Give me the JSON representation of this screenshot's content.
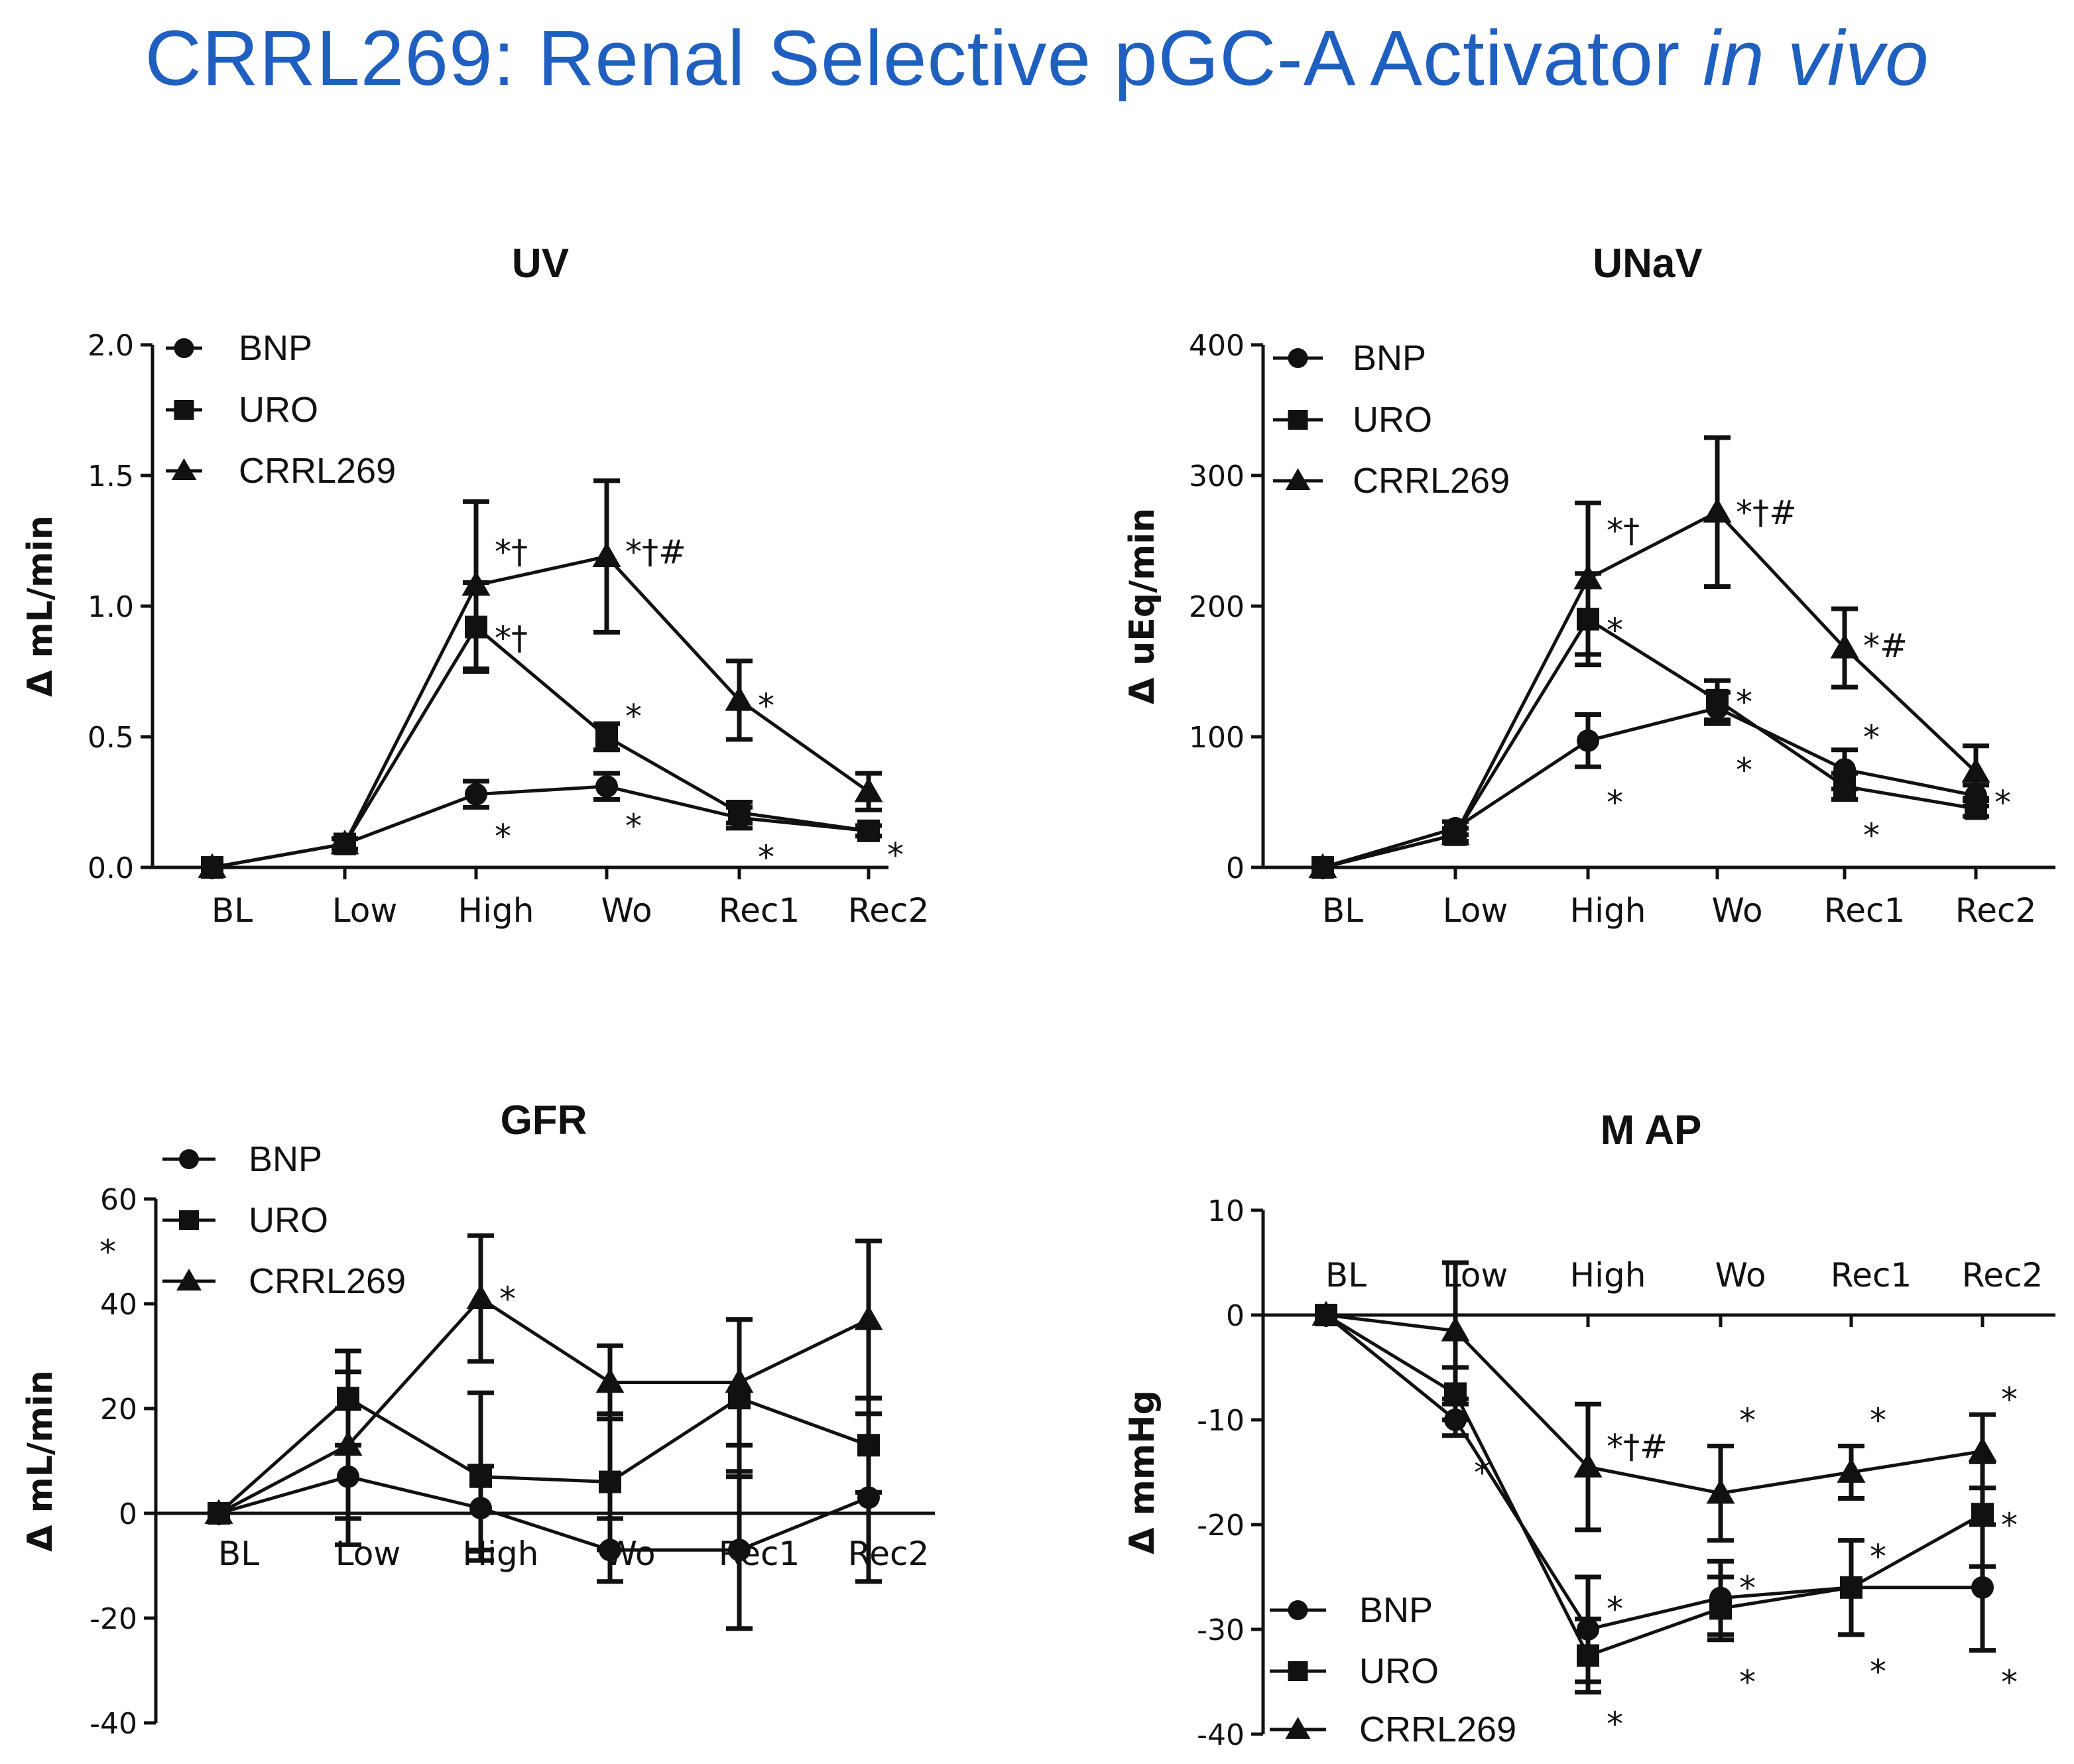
{
  "page_title": {
    "main": "CRRL269: Renal Selective pGC-A Activator ",
    "italic": "in vivo"
  },
  "chart_data": [
    {
      "id": "uv",
      "type": "line",
      "title": "UV",
      "ylabel": "Δ mL/min",
      "xlabel": "",
      "categories": [
        "BL",
        "Low",
        "High",
        "Wo",
        "Rec1",
        "Rec2"
      ],
      "ylim": [
        0,
        2.0
      ],
      "yticks": [
        0.0,
        0.5,
        1.0,
        1.5,
        2.0
      ],
      "ytick_labels": [
        "0.0",
        "0.5",
        "1.0",
        "1.5",
        "2.0"
      ],
      "grid": false,
      "legend_position": "top-left",
      "series": [
        {
          "name": "BNP",
          "marker": "circle",
          "values": [
            0.0,
            0.09,
            0.28,
            0.31,
            0.19,
            0.14
          ],
          "errors": [
            0,
            0.02,
            0.05,
            0.05,
            0.04,
            0.02
          ]
        },
        {
          "name": "URO",
          "marker": "square",
          "values": [
            0.0,
            0.09,
            0.92,
            0.5,
            0.21,
            0.14
          ],
          "errors": [
            0,
            0.02,
            0.17,
            0.05,
            0.04,
            0.02
          ]
        },
        {
          "name": "CRRL269",
          "marker": "triangle",
          "values": [
            0.0,
            0.09,
            1.08,
            1.19,
            0.64,
            0.29
          ],
          "errors": [
            0,
            0.02,
            0.32,
            0.29,
            0.15,
            0.07
          ]
        }
      ],
      "annotations": [
        {
          "text": "*†",
          "x": "High",
          "y": 1.21
        },
        {
          "text": "*†",
          "x": "High",
          "y": 0.88
        },
        {
          "text": "*",
          "x": "High",
          "y": 0.12
        },
        {
          "text": "*†#",
          "x": "Wo",
          "y": 1.21
        },
        {
          "text": "*",
          "x": "Wo",
          "y": 0.58
        },
        {
          "text": "*",
          "x": "Wo",
          "y": 0.16
        },
        {
          "text": "*",
          "x": "Rec1",
          "y": 0.62
        },
        {
          "text": "*",
          "x": "Rec1",
          "y": 0.04
        },
        {
          "text": "*",
          "x": "Rec2",
          "y": 0.05
        }
      ]
    },
    {
      "id": "unav",
      "type": "line",
      "title": "UNaV",
      "ylabel": "Δ uEq/min",
      "xlabel": "",
      "categories": [
        "BL",
        "Low",
        "High",
        "Wo",
        "Rec1",
        "Rec2"
      ],
      "ylim": [
        0,
        400
      ],
      "yticks": [
        0,
        100,
        200,
        300,
        400
      ],
      "ytick_labels": [
        "0",
        "100",
        "200",
        "300",
        "400"
      ],
      "grid": false,
      "legend_position": "top-left",
      "series": [
        {
          "name": "BNP",
          "marker": "circle",
          "values": [
            0,
            30,
            97,
            122,
            75,
            55
          ],
          "errors": [
            0,
            5,
            20,
            12,
            15,
            8
          ]
        },
        {
          "name": "URO",
          "marker": "square",
          "values": [
            0,
            25,
            190,
            128,
            62,
            45
          ],
          "errors": [
            0,
            5,
            35,
            15,
            10,
            6
          ]
        },
        {
          "name": "CRRL269",
          "marker": "triangle",
          "values": [
            0,
            25,
            221,
            272,
            168,
            73
          ],
          "errors": [
            0,
            5,
            58,
            57,
            30,
            20
          ]
        }
      ],
      "annotations": [
        {
          "text": "*†",
          "x": "High",
          "y": 258
        },
        {
          "text": "*",
          "x": "High",
          "y": 182
        },
        {
          "text": "*",
          "x": "High",
          "y": 50
        },
        {
          "text": "*†#",
          "x": "Wo",
          "y": 272
        },
        {
          "text": "*",
          "x": "Wo",
          "y": 127
        },
        {
          "text": "*",
          "x": "Wo",
          "y": 75
        },
        {
          "text": "*#",
          "x": "Rec1",
          "y": 170
        },
        {
          "text": "*",
          "x": "Rec1",
          "y": 100
        },
        {
          "text": "*",
          "x": "Rec1",
          "y": 25
        },
        {
          "text": "*",
          "x": "Rec2",
          "y": 50
        }
      ]
    },
    {
      "id": "gfr",
      "type": "line",
      "title": "GFR",
      "ylabel": "Δ mL/min",
      "xlabel": "",
      "categories": [
        "BL",
        "Low",
        "High",
        "Wo",
        "Rec1",
        "Rec2"
      ],
      "ylim": [
        -40,
        60
      ],
      "yticks": [
        -40,
        -20,
        0,
        20,
        40,
        60
      ],
      "ytick_labels": [
        "-40",
        "-20",
        "0",
        "20",
        "40",
        "60"
      ],
      "grid": false,
      "legend_position": "top-left",
      "series": [
        {
          "name": "BNP",
          "marker": "circle",
          "values": [
            0,
            7,
            1,
            -7,
            -7,
            3
          ],
          "errors": [
            0,
            13,
            8,
            6,
            15,
            16
          ]
        },
        {
          "name": "URO",
          "marker": "square",
          "values": [
            0,
            22,
            7,
            6,
            22,
            13
          ],
          "errors": [
            0,
            9,
            16,
            13,
            15,
            9
          ]
        },
        {
          "name": "CRRL269",
          "marker": "triangle",
          "values": [
            0,
            13,
            41,
            25,
            25,
            37
          ],
          "errors": [
            0,
            14,
            12,
            7,
            12,
            15
          ]
        }
      ],
      "annotations": [
        {
          "text": "*",
          "x": "High",
          "y": 41
        },
        {
          "text": "*",
          "x": "outside-left",
          "y": 50
        }
      ]
    },
    {
      "id": "map",
      "type": "line",
      "title": "M AP",
      "ylabel": "Δ mmHg",
      "xlabel": "",
      "categories": [
        "BL",
        "Low",
        "High",
        "Wo",
        "Rec1",
        "Rec2"
      ],
      "ylim": [
        -40,
        10
      ],
      "yticks": [
        -40,
        -30,
        -20,
        -10,
        0,
        10
      ],
      "ytick_labels": [
        "-40",
        "-30",
        "-20",
        "-10",
        "0",
        "10"
      ],
      "grid": false,
      "legend_position": "bottom-left",
      "series": [
        {
          "name": "BNP",
          "marker": "circle",
          "values": [
            0,
            -10,
            -30,
            -27,
            -26,
            -26
          ],
          "errors": [
            0,
            1.5,
            5,
            3.5,
            4.5,
            6
          ]
        },
        {
          "name": "URO",
          "marker": "square",
          "values": [
            0,
            -7.5,
            -32.5,
            -28,
            -26,
            -19
          ],
          "errors": [
            0,
            2.5,
            3.5,
            3,
            4.5,
            5
          ]
        },
        {
          "name": "CRRL269",
          "marker": "triangle",
          "values": [
            0,
            -1.5,
            -14.5,
            -17,
            -15,
            -13
          ],
          "errors": [
            0,
            6.5,
            6,
            4.5,
            2.5,
            3.5
          ]
        }
      ],
      "annotations": [
        {
          "text": "*†#",
          "x": "High",
          "y": -12.5
        },
        {
          "text": "*",
          "x": "High",
          "y": -28
        },
        {
          "text": "*",
          "x": "High",
          "y": -39
        },
        {
          "text": "*",
          "x": "Low",
          "y": -15
        },
        {
          "text": "*",
          "x": "Wo",
          "y": -10
        },
        {
          "text": "*",
          "x": "Wo",
          "y": -26
        },
        {
          "text": "*",
          "x": "Wo",
          "y": -35
        },
        {
          "text": "*",
          "x": "Rec1",
          "y": -10
        },
        {
          "text": "*",
          "x": "Rec1",
          "y": -23
        },
        {
          "text": "*",
          "x": "Rec1",
          "y": -34
        },
        {
          "text": "*",
          "x": "Rec2",
          "y": -8
        },
        {
          "text": "*",
          "x": "Rec2",
          "y": -20
        },
        {
          "text": "*",
          "x": "Rec2",
          "y": -35
        }
      ]
    }
  ]
}
